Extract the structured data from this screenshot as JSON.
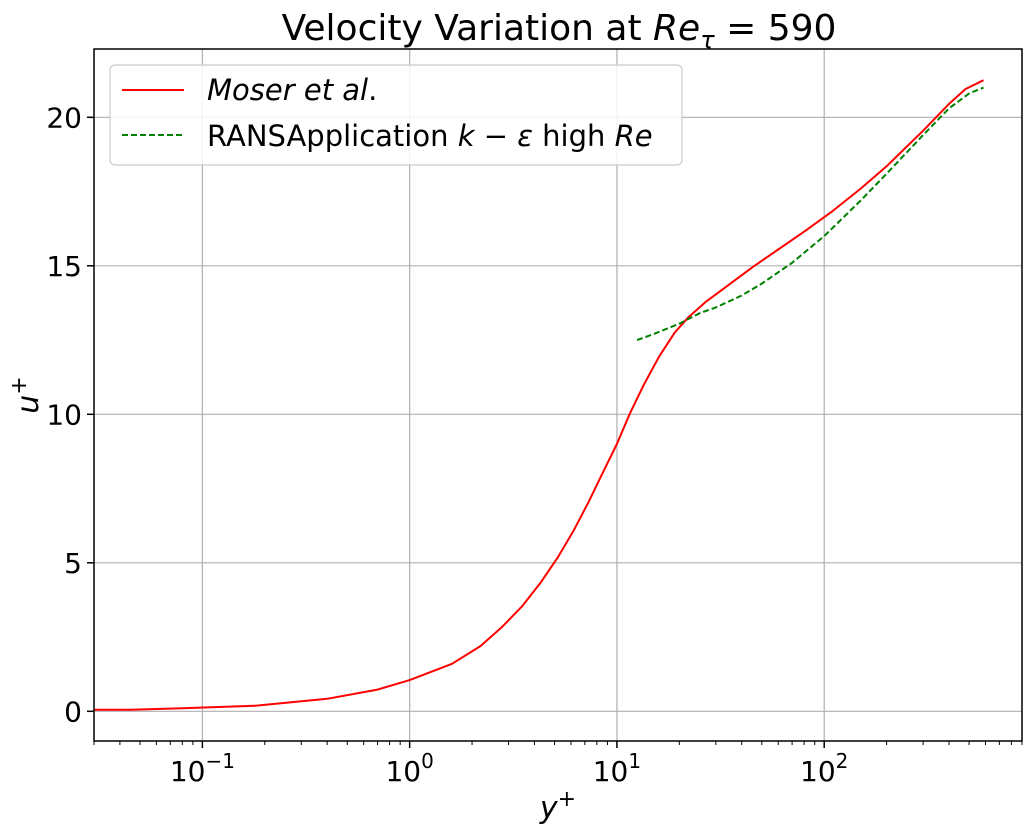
{
  "chart_data": {
    "type": "line",
    "title": "Velocity Variation at Re_τ = 590",
    "xlabel": "y+",
    "ylabel": "u+",
    "xscale": "log",
    "xlim": [
      0.03,
      900
    ],
    "ylim": [
      -1.0,
      22.3
    ],
    "grid": true,
    "legend_position": "upper-left",
    "x_ticks": [
      {
        "value": 0.1,
        "base": "10",
        "exp": "−1"
      },
      {
        "value": 1,
        "base": "10",
        "exp": "0"
      },
      {
        "value": 10,
        "base": "10",
        "exp": "1"
      },
      {
        "value": 100,
        "base": "10",
        "exp": "2"
      }
    ],
    "y_ticks": [
      0,
      5,
      10,
      15,
      20
    ],
    "series": [
      {
        "name": "Moser et al.",
        "color": "#ff0000",
        "style": "solid",
        "x": [
          0.03,
          0.045,
          0.08,
          0.18,
          0.4,
          0.7,
          1.0,
          1.6,
          2.2,
          2.8,
          3.5,
          4.3,
          5.2,
          6.2,
          7.3,
          8.5,
          10,
          11.5,
          13.5,
          16,
          19,
          22,
          27,
          33,
          45,
          60,
          80,
          110,
          150,
          200,
          300,
          400,
          480,
          587
        ],
        "y": [
          0.05,
          0.05,
          0.1,
          0.19,
          0.42,
          0.73,
          1.05,
          1.6,
          2.2,
          2.85,
          3.55,
          4.35,
          5.2,
          6.1,
          7.05,
          8.0,
          9.0,
          10.0,
          11.0,
          11.95,
          12.75,
          13.25,
          13.8,
          14.25,
          14.95,
          15.55,
          16.15,
          16.85,
          17.6,
          18.35,
          19.55,
          20.45,
          20.95,
          21.25
        ]
      },
      {
        "name": "RANSApplication k−ε high Re",
        "color": "#008000",
        "style": "dashed",
        "x": [
          12.5,
          15,
          20,
          25,
          30,
          40,
          50,
          70,
          100,
          150,
          200,
          300,
          400,
          500,
          587
        ],
        "y": [
          12.5,
          12.7,
          13.05,
          13.4,
          13.6,
          14.0,
          14.4,
          15.1,
          16.0,
          17.2,
          18.1,
          19.4,
          20.3,
          20.8,
          21.0
        ]
      }
    ]
  }
}
